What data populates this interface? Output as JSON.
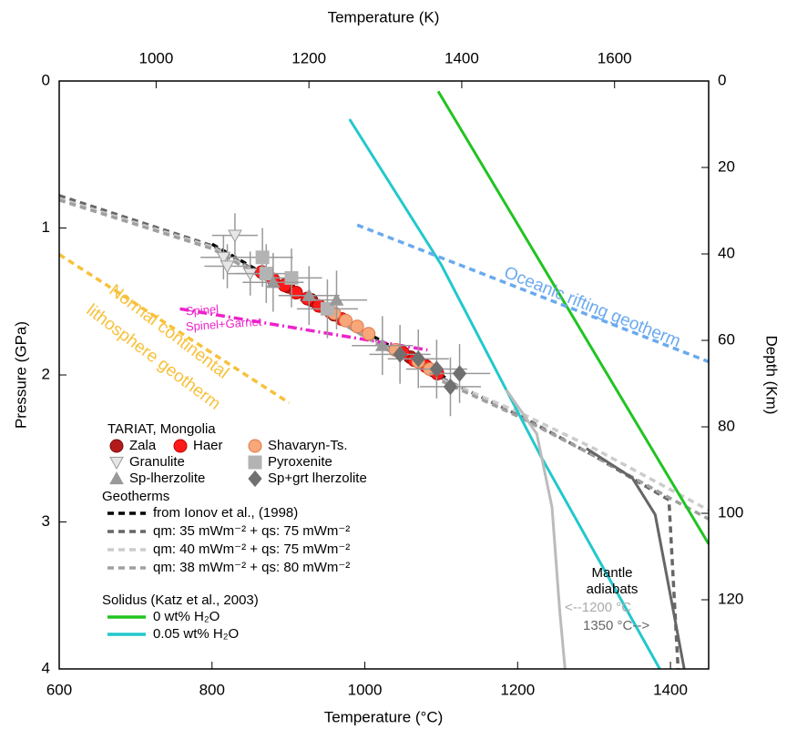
{
  "chart_data": {
    "type": "line",
    "xlabel": "Temperature (°C)",
    "x2label": "Temperature (K)",
    "ylabel": "Pressure (GPa)",
    "y2label": "Depth (Km)",
    "xlim": [
      600,
      1450
    ],
    "xticks": [
      600,
      800,
      1000,
      1200,
      1400
    ],
    "x2lim": [
      873.15,
      1723.15
    ],
    "x2ticks": [
      1000,
      1200,
      1400,
      1600
    ],
    "ylim": [
      0,
      4
    ],
    "yticks": [
      0,
      1,
      2,
      3,
      4
    ],
    "y_inverted": true,
    "y2lim": [
      0,
      136
    ],
    "y2ticks": [
      0,
      20,
      40,
      60,
      80,
      100,
      120
    ],
    "legend_titles": [
      "TARIAT, Mongolia",
      "Geotherms",
      "Solidus (Katz et al., 2003)"
    ],
    "annotations": [
      "Spinel",
      "Spinel+Garnet",
      "Oceanic rifting geotherm",
      "Normal continental",
      "lithosphere geotherm",
      "Mantle",
      "adiabats",
      "<--1200 °C",
      "1350 °C-->"
    ],
    "series": [
      {
        "name": "Zala",
        "kind": "scatter",
        "marker": "circle",
        "color": "#b31b1b",
        "edge": "#7a0f0f",
        "legend_group": 0,
        "x": [
          870,
          900,
          930,
          960,
          1060,
          1090
        ],
        "y": [
          1.31,
          1.4,
          1.49,
          1.59,
          1.88,
          1.97
        ]
      },
      {
        "name": "Haer",
        "kind": "scatter",
        "marker": "circle",
        "color": "#ff1a1a",
        "edge": "#c00000",
        "legend_group": 0,
        "x": [
          865,
          880,
          895,
          910,
          925,
          940,
          955,
          970,
          1050,
          1065,
          1080,
          1095
        ],
        "y": [
          1.3,
          1.35,
          1.39,
          1.44,
          1.48,
          1.53,
          1.57,
          1.62,
          1.85,
          1.9,
          1.94,
          1.99
        ]
      },
      {
        "name": "Shavaryn-Ts.",
        "kind": "scatter",
        "marker": "circle",
        "color": "#f7a779",
        "edge": "#e07848",
        "legend_group": 0,
        "x": [
          960,
          975,
          990,
          1005,
          1040,
          1070,
          1085
        ],
        "y": [
          1.58,
          1.63,
          1.67,
          1.72,
          1.83,
          1.91,
          1.96
        ]
      },
      {
        "name": "Granulite",
        "kind": "scatter",
        "marker": "triangle-down",
        "color": "#e6e6e6",
        "edge": "#999999",
        "legend_group": 0,
        "x": [
          830,
          815,
          820,
          850
        ],
        "y": [
          1.05,
          1.2,
          1.26,
          1.31
        ],
        "xerr": [
          30,
          30,
          30,
          30
        ],
        "yerr": [
          0.15,
          0.15,
          0.15,
          0.15
        ]
      },
      {
        "name": "Pyroxenite",
        "kind": "scatter",
        "marker": "square",
        "color": "#b3b3b3",
        "edge": "#b3b3b3",
        "legend_group": 0,
        "x": [
          866,
          871,
          904,
          951
        ],
        "y": [
          1.2,
          1.31,
          1.34,
          1.55
        ],
        "xerr": [
          40,
          40,
          40,
          40
        ],
        "yerr": [
          0.2,
          0.2,
          0.2,
          0.2
        ]
      },
      {
        "name": "Sp-lherzolite",
        "kind": "scatter",
        "marker": "triangle-up",
        "color": "#999999",
        "edge": "#999999",
        "legend_group": 0,
        "x": [
          880,
          927,
          963,
          1023
        ],
        "y": [
          1.37,
          1.46,
          1.49,
          1.8
        ],
        "xerr": [
          40,
          40,
          40,
          40
        ],
        "yerr": [
          0.2,
          0.2,
          0.2,
          0.2
        ]
      },
      {
        "name": "Sp+grt lherzolite",
        "kind": "scatter",
        "marker": "diamond",
        "color": "#707070",
        "edge": "#707070",
        "legend_group": 0,
        "x": [
          1046,
          1070,
          1094,
          1124,
          1112
        ],
        "y": [
          1.86,
          1.89,
          1.96,
          1.99,
          2.08
        ],
        "xerr": [
          40,
          40,
          40,
          40,
          40
        ],
        "yerr": [
          0.2,
          0.2,
          0.2,
          0.2,
          0.2
        ]
      },
      {
        "name": "from Ionov et al., (1998)",
        "kind": "line",
        "dash": "dash",
        "color": "#000000",
        "legend_group": 1,
        "x": [
          800,
          1106
        ],
        "y": [
          1.11,
          2.02
        ]
      },
      {
        "name": "qm: 35 mWm⁻² + qs: 75 mWm⁻²",
        "kind": "line",
        "dash": "dash",
        "color": "#666666",
        "legend_group": 1,
        "x": [
          600,
          800,
          1100,
          1200,
          1300,
          1398,
          1410
        ],
        "y": [
          0.78,
          1.12,
          2.02,
          2.27,
          2.55,
          2.85,
          4.0
        ]
      },
      {
        "name": "qm: 40 mWm⁻² + qs: 75 mWm⁻²",
        "kind": "line",
        "dash": "dash",
        "color": "#cccccc",
        "legend_group": 1,
        "x": [
          600,
          800,
          1100,
          1200,
          1300,
          1400,
          1450
        ],
        "y": [
          0.8,
          1.13,
          2.03,
          2.25,
          2.5,
          2.78,
          2.92
        ]
      },
      {
        "name": "qm: 38 mWm⁻² + qs: 80 mWm⁻²",
        "kind": "line",
        "dash": "dash",
        "color": "#a0a0a0",
        "legend_group": 1,
        "x": [
          600,
          800,
          1100,
          1200,
          1300,
          1400,
          1450
        ],
        "y": [
          0.81,
          1.14,
          2.04,
          2.28,
          2.55,
          2.84,
          2.98
        ]
      },
      {
        "name": "0 wt% H₂O",
        "kind": "line",
        "dash": "solid",
        "color": "#22c322",
        "legend_group": 2,
        "x": [
          1096,
          1450
        ],
        "y": [
          0.07,
          3.15
        ]
      },
      {
        "name": "0.05 wt% H₂O",
        "kind": "line",
        "dash": "solid",
        "color": "#22c8cc",
        "legend_group": 2,
        "x": [
          980,
          1100,
          1230,
          1386
        ],
        "y": [
          0.26,
          1.25,
          2.55,
          4.0
        ]
      },
      {
        "kind": "line",
        "dash": "dash",
        "color": "#6aaaee",
        "x": [
          990,
          1450
        ],
        "y": [
          0.98,
          1.91
        ]
      },
      {
        "kind": "line",
        "dash": "dash",
        "color": "#f7c13b",
        "x": [
          600,
          901
        ],
        "y": [
          1.18,
          2.19
        ]
      },
      {
        "kind": "line",
        "dash": "dashdot",
        "color": "#ee22cc",
        "x": [
          758,
          1082
        ],
        "y": [
          1.55,
          1.83
        ]
      },
      {
        "kind": "line",
        "dash": "solid",
        "color": "#bbbbbb",
        "x": [
          1185,
          1225,
          1245,
          1255,
          1262
        ],
        "y": [
          2.1,
          2.4,
          2.9,
          3.6,
          4.0
        ]
      },
      {
        "kind": "line",
        "dash": "solid",
        "color": "#666666",
        "x": [
          1290,
          1350,
          1380,
          1400,
          1418
        ],
        "y": [
          2.5,
          2.7,
          2.95,
          3.5,
          4.0
        ]
      }
    ]
  }
}
